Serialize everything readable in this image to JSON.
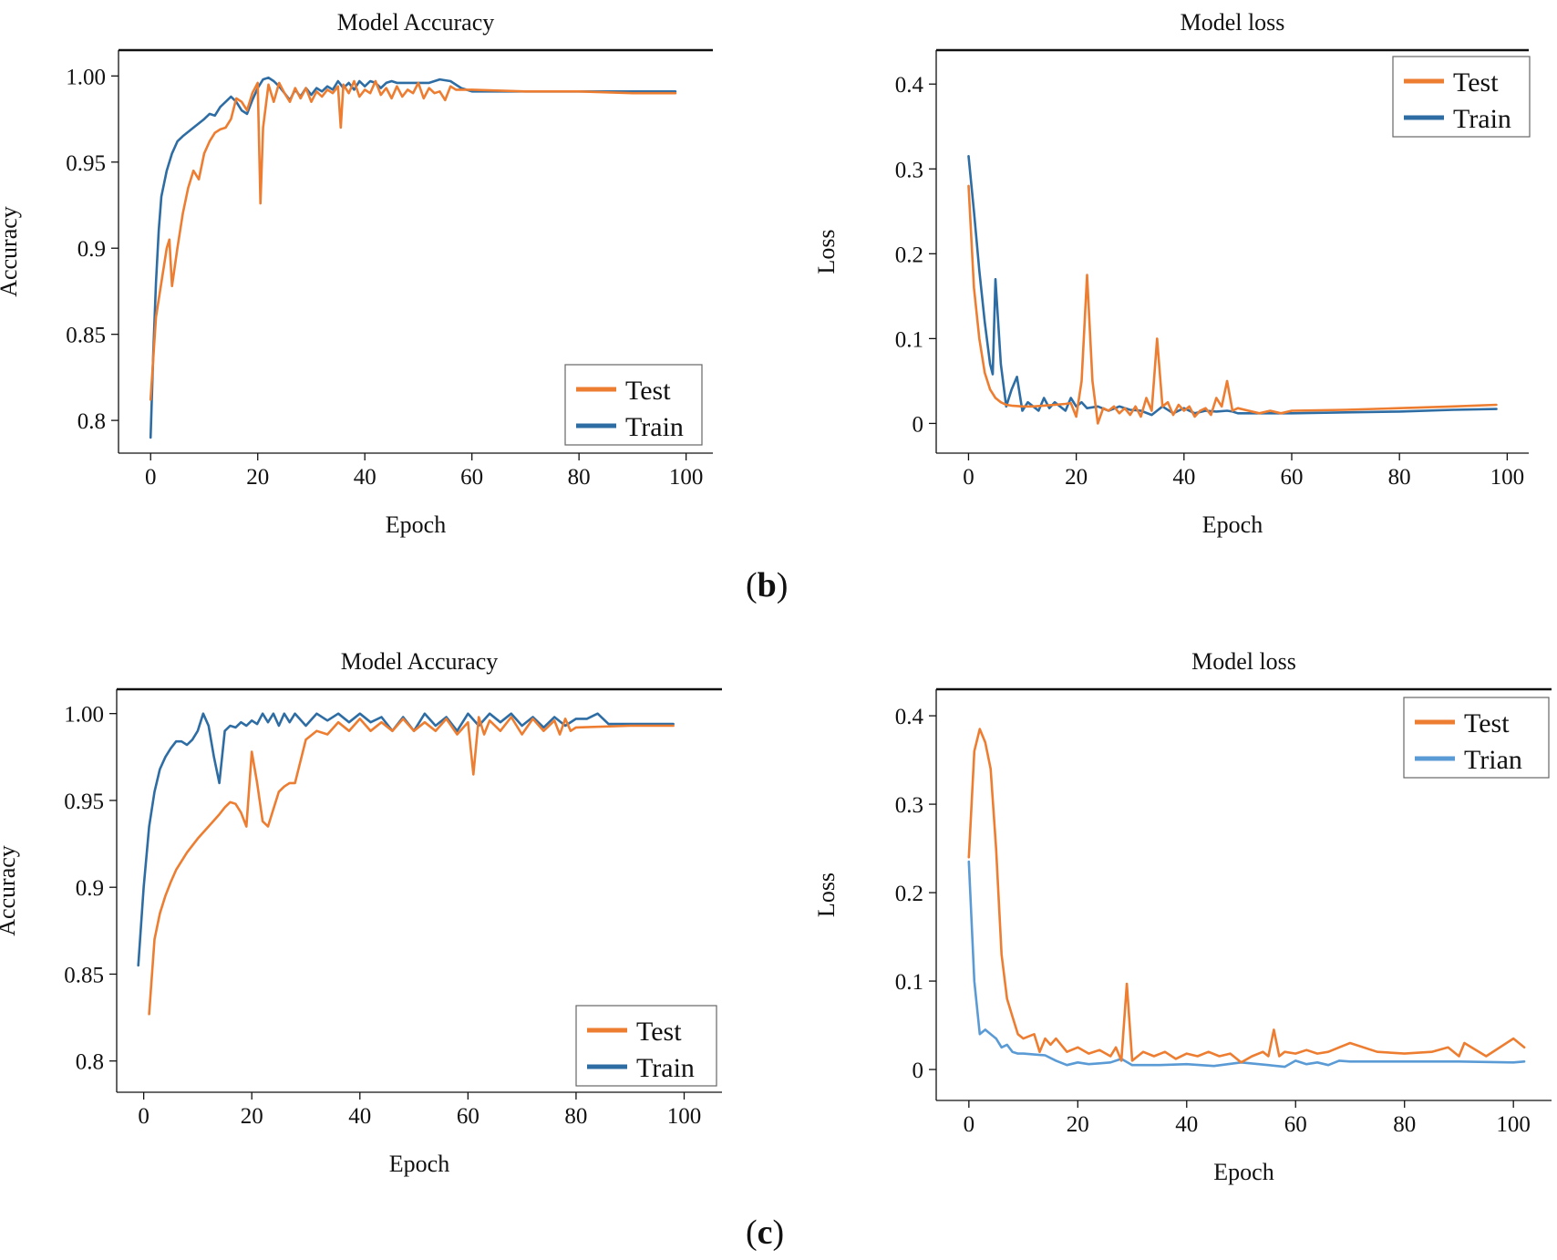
{
  "panel_labels": {
    "b": "b",
    "c": "c"
  },
  "chart_data": [
    {
      "id": "b-acc",
      "type": "line",
      "title": "Model Accuracy",
      "xlabel": "Epoch",
      "ylabel": "Accuracy",
      "xlim": [
        -6,
        105
      ],
      "ylim": [
        0.781,
        1.015
      ],
      "xticks": [
        0,
        20,
        40,
        60,
        80,
        100
      ],
      "xtick_labels": [
        "0",
        "20",
        "40",
        "60",
        "80",
        "100"
      ],
      "yticks": [
        0.8,
        0.85,
        0.9,
        0.95,
        1.0
      ],
      "ytick_labels": [
        "0.8",
        "0.85",
        "0.9",
        "0.95",
        "1.00"
      ],
      "legend": {
        "position": "bottom-right",
        "entries": [
          "Test",
          "Train"
        ]
      },
      "series": [
        {
          "name": "Test",
          "color": "#ed7d31",
          "x": [
            0,
            1,
            2,
            3,
            3.5,
            4,
            5,
            6,
            7,
            8,
            9,
            10,
            11,
            12,
            13,
            14,
            15,
            16,
            17,
            18,
            19,
            20,
            20.5,
            21,
            22,
            23,
            24,
            25,
            26,
            27,
            28,
            29,
            30,
            31,
            32,
            33,
            34,
            35,
            35.5,
            36,
            37,
            38,
            39,
            40,
            41,
            42,
            43,
            44,
            45,
            46,
            47,
            48,
            49,
            50,
            51,
            52,
            53,
            54,
            55,
            56,
            57,
            60,
            70,
            80,
            90,
            98
          ],
          "y": [
            0.812,
            0.86,
            0.88,
            0.9,
            0.905,
            0.878,
            0.9,
            0.92,
            0.935,
            0.945,
            0.94,
            0.955,
            0.962,
            0.967,
            0.969,
            0.97,
            0.975,
            0.987,
            0.985,
            0.98,
            0.99,
            0.996,
            0.926,
            0.97,
            0.995,
            0.985,
            0.996,
            0.99,
            0.985,
            0.993,
            0.987,
            0.993,
            0.985,
            0.991,
            0.988,
            0.992,
            0.99,
            0.994,
            0.97,
            0.995,
            0.99,
            0.997,
            0.988,
            0.992,
            0.99,
            0.997,
            0.989,
            0.993,
            0.987,
            0.994,
            0.988,
            0.992,
            0.99,
            0.996,
            0.987,
            0.993,
            0.99,
            0.991,
            0.986,
            0.994,
            0.992,
            0.992,
            0.991,
            0.991,
            0.99,
            0.99
          ]
        },
        {
          "name": "Train",
          "color": "#2e6da4",
          "x": [
            0,
            0.5,
            1,
            1.5,
            2,
            3,
            4,
            5,
            6,
            8,
            10,
            11,
            12,
            13,
            14,
            15,
            16,
            17,
            18,
            19,
            20,
            21,
            22,
            23,
            24,
            25,
            26,
            27,
            28,
            29,
            30,
            31,
            32,
            33,
            34,
            35,
            36,
            37,
            38,
            39,
            40,
            41,
            42,
            43,
            44,
            45,
            46,
            48,
            50,
            52,
            54,
            56,
            58,
            60,
            70,
            80,
            90,
            98
          ],
          "y": [
            0.79,
            0.84,
            0.88,
            0.91,
            0.93,
            0.945,
            0.955,
            0.962,
            0.965,
            0.97,
            0.975,
            0.978,
            0.977,
            0.982,
            0.985,
            0.988,
            0.985,
            0.98,
            0.978,
            0.986,
            0.993,
            0.998,
            0.999,
            0.997,
            0.994,
            0.99,
            0.986,
            0.992,
            0.988,
            0.993,
            0.989,
            0.993,
            0.991,
            0.994,
            0.992,
            0.997,
            0.993,
            0.996,
            0.992,
            0.997,
            0.994,
            0.997,
            0.996,
            0.993,
            0.996,
            0.997,
            0.996,
            0.996,
            0.996,
            0.996,
            0.998,
            0.997,
            0.993,
            0.991,
            0.991,
            0.991,
            0.991,
            0.991
          ]
        }
      ]
    },
    {
      "id": "b-loss",
      "type": "line",
      "title": "Model loss",
      "xlabel": "Epoch",
      "ylabel": "Loss",
      "xlim": [
        -6,
        104
      ],
      "ylim": [
        -0.035,
        0.44
      ],
      "xticks": [
        0,
        20,
        40,
        60,
        80,
        100
      ],
      "xtick_labels": [
        "0",
        "20",
        "40",
        "60",
        "80",
        "100"
      ],
      "yticks": [
        0,
        0.1,
        0.2,
        0.3,
        0.4
      ],
      "ytick_labels": [
        "0",
        "0.1",
        "0.2",
        "0.3",
        "0.4"
      ],
      "legend": {
        "position": "top-right",
        "entries": [
          "Test",
          "Train"
        ]
      },
      "series": [
        {
          "name": "Test",
          "color": "#ed7d31",
          "x": [
            0,
            1,
            2,
            3,
            4,
            5,
            6,
            7,
            8,
            10,
            12,
            14,
            16,
            18,
            19,
            20,
            21,
            22,
            23,
            24,
            25,
            26,
            27,
            28,
            29,
            30,
            31,
            32,
            33,
            34,
            35,
            36,
            37,
            38,
            39,
            40,
            41,
            42,
            43,
            44,
            45,
            46,
            47,
            48,
            49,
            50,
            52,
            54,
            56,
            58,
            60,
            70,
            80,
            90,
            98
          ],
          "y": [
            0.28,
            0.16,
            0.1,
            0.06,
            0.04,
            0.03,
            0.025,
            0.022,
            0.021,
            0.02,
            0.02,
            0.021,
            0.022,
            0.023,
            0.024,
            0.008,
            0.05,
            0.175,
            0.05,
            0.0,
            0.018,
            0.015,
            0.02,
            0.012,
            0.018,
            0.01,
            0.02,
            0.008,
            0.03,
            0.015,
            0.1,
            0.02,
            0.025,
            0.01,
            0.022,
            0.015,
            0.02,
            0.008,
            0.015,
            0.018,
            0.01,
            0.03,
            0.02,
            0.05,
            0.015,
            0.018,
            0.015,
            0.012,
            0.015,
            0.012,
            0.015,
            0.016,
            0.018,
            0.02,
            0.022
          ]
        },
        {
          "name": "Train",
          "color": "#2e6da4",
          "x": [
            0,
            1,
            2,
            3,
            4,
            4.5,
            5,
            6,
            7,
            8,
            9,
            10,
            11,
            12,
            13,
            14,
            15,
            16,
            17,
            18,
            19,
            20,
            21,
            22,
            24,
            26,
            28,
            30,
            32,
            34,
            36,
            38,
            40,
            42,
            44,
            46,
            48,
            49,
            50,
            60,
            70,
            80,
            90,
            98
          ],
          "y": [
            0.315,
            0.25,
            0.18,
            0.12,
            0.07,
            0.058,
            0.17,
            0.07,
            0.02,
            0.04,
            0.055,
            0.015,
            0.025,
            0.02,
            0.015,
            0.03,
            0.018,
            0.025,
            0.02,
            0.015,
            0.03,
            0.02,
            0.025,
            0.018,
            0.02,
            0.015,
            0.02,
            0.016,
            0.015,
            0.01,
            0.02,
            0.012,
            0.018,
            0.012,
            0.015,
            0.014,
            0.015,
            0.014,
            0.012,
            0.012,
            0.013,
            0.014,
            0.016,
            0.017
          ]
        }
      ]
    },
    {
      "id": "c-acc",
      "type": "line",
      "title": "Model Accuracy",
      "xlabel": "Epoch",
      "ylabel": "Accuracy",
      "xlim": [
        -5,
        107
      ],
      "ylim": [
        0.782,
        1.014
      ],
      "xticks": [
        0,
        20,
        40,
        60,
        80,
        100
      ],
      "xtick_labels": [
        "0",
        "20",
        "40",
        "60",
        "80",
        "100"
      ],
      "yticks": [
        0.8,
        0.85,
        0.9,
        0.95,
        1.0
      ],
      "ytick_labels": [
        "0.8",
        "0.85",
        "0.9",
        "0.95",
        "1.00"
      ],
      "legend": {
        "position": "bottom-right",
        "entries": [
          "Test",
          "Train"
        ]
      },
      "series": [
        {
          "name": "Test",
          "color": "#ed7d31",
          "x": [
            1,
            2,
            3,
            4,
            5,
            6,
            8,
            10,
            12,
            14,
            15,
            16,
            17,
            18,
            19,
            20,
            21,
            22,
            23,
            24,
            25,
            26,
            27,
            28,
            30,
            32,
            34,
            36,
            38,
            40,
            42,
            44,
            46,
            48,
            50,
            52,
            54,
            56,
            58,
            60,
            61,
            62,
            63,
            64,
            66,
            68,
            70,
            72,
            74,
            76,
            77,
            78,
            79,
            80,
            90,
            98
          ],
          "y": [
            0.827,
            0.87,
            0.885,
            0.895,
            0.903,
            0.91,
            0.92,
            0.928,
            0.935,
            0.942,
            0.946,
            0.949,
            0.948,
            0.943,
            0.935,
            0.978,
            0.96,
            0.938,
            0.935,
            0.945,
            0.955,
            0.958,
            0.96,
            0.96,
            0.985,
            0.99,
            0.988,
            0.995,
            0.99,
            0.997,
            0.99,
            0.995,
            0.99,
            0.997,
            0.99,
            0.995,
            0.99,
            0.997,
            0.988,
            0.995,
            0.965,
            0.998,
            0.988,
            0.996,
            0.99,
            0.998,
            0.988,
            0.997,
            0.99,
            0.996,
            0.988,
            0.997,
            0.99,
            0.992,
            0.993,
            0.993
          ]
        },
        {
          "name": "Train",
          "color": "#2e6da4",
          "x": [
            -1,
            0,
            1,
            2,
            3,
            4,
            5,
            6,
            7,
            8,
            9,
            10,
            11,
            12,
            13,
            14,
            15,
            16,
            17,
            18,
            19,
            20,
            21,
            22,
            23,
            24,
            25,
            26,
            27,
            28,
            30,
            32,
            34,
            36,
            38,
            40,
            42,
            44,
            46,
            48,
            50,
            52,
            54,
            56,
            58,
            60,
            62,
            64,
            66,
            68,
            70,
            72,
            74,
            76,
            78,
            80,
            82,
            84,
            86,
            90,
            98
          ],
          "y": [
            0.855,
            0.9,
            0.935,
            0.955,
            0.968,
            0.975,
            0.98,
            0.984,
            0.984,
            0.982,
            0.985,
            0.99,
            1.0,
            0.993,
            0.975,
            0.96,
            0.99,
            0.993,
            0.992,
            0.995,
            0.993,
            0.996,
            0.994,
            1.0,
            0.995,
            1.0,
            0.993,
            1.0,
            0.995,
            1.0,
            0.993,
            1.0,
            0.996,
            1.0,
            0.995,
            1.0,
            0.995,
            0.998,
            0.99,
            0.998,
            0.99,
            1.0,
            0.993,
            0.998,
            0.99,
            1.0,
            0.993,
            1.0,
            0.995,
            1.0,
            0.993,
            0.998,
            0.992,
            0.998,
            0.993,
            0.997,
            0.997,
            1.0,
            0.994,
            0.994,
            0.994
          ]
        }
      ]
    },
    {
      "id": "c-loss",
      "type": "line",
      "title": "Model loss",
      "xlabel": "Epoch",
      "ylabel": "Loss",
      "xlim": [
        -6,
        107
      ],
      "ylim": [
        -0.035,
        0.43
      ],
      "xticks": [
        0,
        20,
        40,
        60,
        80,
        100
      ],
      "xtick_labels": [
        "0",
        "20",
        "40",
        "60",
        "80",
        "100"
      ],
      "yticks": [
        0,
        0.1,
        0.2,
        0.3,
        0.4
      ],
      "ytick_labels": [
        "0",
        "0.1",
        "0.2",
        "0.3",
        "0.4"
      ],
      "legend": {
        "position": "top-right",
        "entries": [
          "Test",
          "Trian"
        ]
      },
      "series": [
        {
          "name": "Test",
          "color": "#ed7d31",
          "x": [
            0,
            1,
            2,
            3,
            4,
            5,
            6,
            7,
            8,
            9,
            10,
            12,
            13,
            14,
            15,
            16,
            18,
            20,
            22,
            24,
            26,
            27,
            28,
            29,
            30,
            32,
            34,
            36,
            38,
            40,
            42,
            44,
            46,
            48,
            50,
            52,
            54,
            55,
            56,
            57,
            58,
            60,
            62,
            64,
            66,
            68,
            70,
            75,
            80,
            85,
            88,
            90,
            91,
            95,
            100,
            102
          ],
          "y": [
            0.24,
            0.36,
            0.385,
            0.37,
            0.34,
            0.25,
            0.13,
            0.08,
            0.06,
            0.04,
            0.035,
            0.04,
            0.02,
            0.035,
            0.028,
            0.035,
            0.02,
            0.025,
            0.018,
            0.022,
            0.015,
            0.025,
            0.01,
            0.097,
            0.01,
            0.02,
            0.015,
            0.02,
            0.012,
            0.018,
            0.015,
            0.02,
            0.015,
            0.018,
            0.008,
            0.015,
            0.02,
            0.015,
            0.045,
            0.015,
            0.02,
            0.018,
            0.022,
            0.018,
            0.02,
            0.025,
            0.03,
            0.02,
            0.018,
            0.02,
            0.025,
            0.015,
            0.03,
            0.015,
            0.035,
            0.025
          ]
        },
        {
          "name": "Trian",
          "color": "#5b9bd5",
          "x": [
            0,
            1,
            2,
            3,
            4,
            5,
            6,
            7,
            8,
            9,
            10,
            12,
            14,
            16,
            18,
            20,
            22,
            24,
            26,
            28,
            30,
            35,
            40,
            45,
            50,
            55,
            58,
            60,
            62,
            64,
            66,
            68,
            70,
            80,
            90,
            100,
            102
          ],
          "y": [
            0.235,
            0.1,
            0.04,
            0.045,
            0.04,
            0.035,
            0.025,
            0.028,
            0.02,
            0.018,
            0.018,
            0.017,
            0.016,
            0.01,
            0.005,
            0.008,
            0.006,
            0.007,
            0.008,
            0.012,
            0.005,
            0.005,
            0.006,
            0.004,
            0.008,
            0.005,
            0.003,
            0.01,
            0.006,
            0.008,
            0.005,
            0.01,
            0.009,
            0.009,
            0.009,
            0.008,
            0.009
          ]
        }
      ]
    }
  ]
}
